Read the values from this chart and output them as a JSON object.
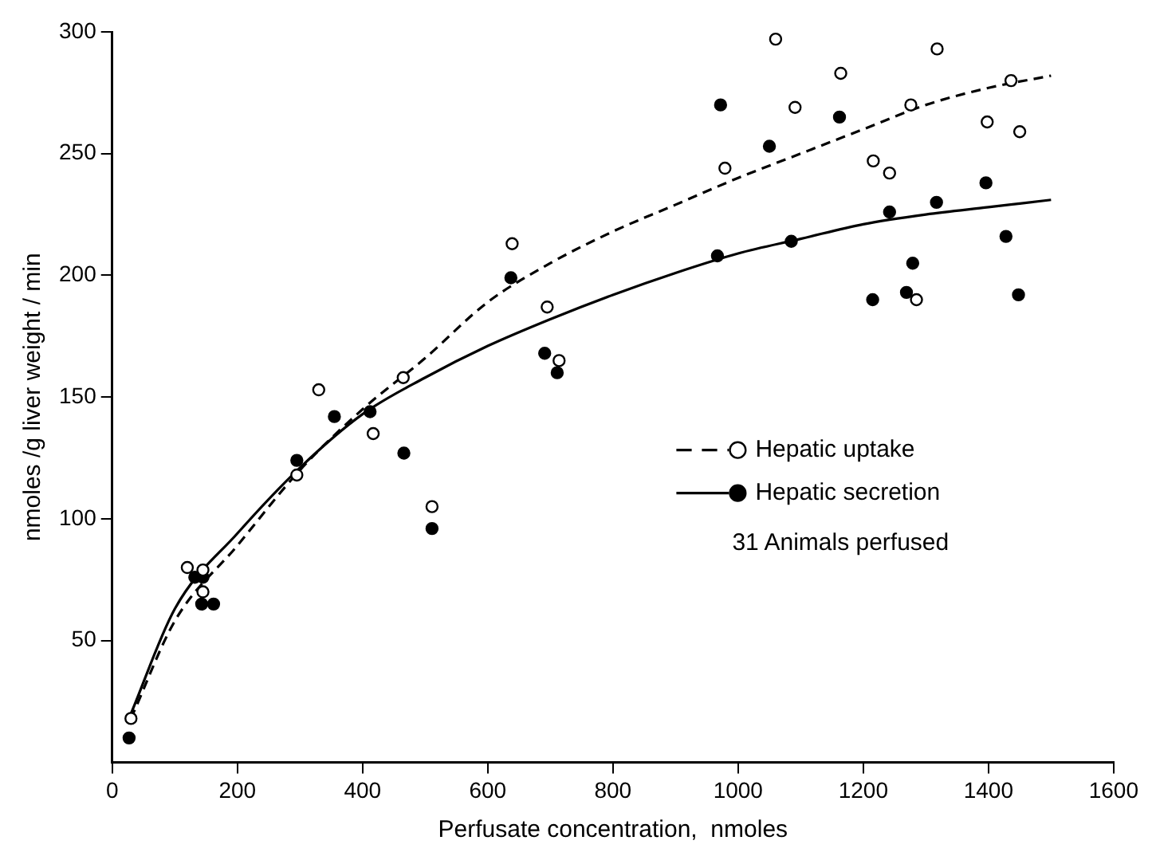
{
  "chart_data": {
    "type": "scatter",
    "xlabel": "Perfusate concentration,  nmoles",
    "ylabel": "nmoles /g liver weight / min",
    "xlim": [
      0,
      1600
    ],
    "xticks": [
      0,
      200,
      400,
      600,
      800,
      1000,
      1200,
      1400,
      1600
    ],
    "ylim": [
      0,
      300
    ],
    "yticks": [
      50,
      100,
      150,
      200,
      250,
      300
    ],
    "grid": false,
    "legend": "bottom right",
    "marker": "circle",
    "annotations": [
      "31 Animals perfused"
    ],
    "series": [
      {
        "name": "Hepatic uptake",
        "type": "scatter",
        "color": "#000000",
        "x": [
          30,
          120,
          145,
          145,
          295,
          330,
          417,
          465,
          511,
          639,
          695,
          714,
          979,
          1060,
          1091,
          1164,
          1216,
          1242,
          1276,
          1285,
          1318,
          1398,
          1436,
          1450
        ],
        "values": [
          18,
          80,
          79,
          70,
          118,
          153,
          135,
          158,
          105,
          213,
          187,
          165,
          244,
          297,
          269,
          283,
          247,
          242,
          270,
          190,
          293,
          263,
          280,
          259
        ]
      },
      {
        "name": "Hepatic secretion",
        "type": "scatter",
        "color": "#000000",
        "x": [
          27,
          132,
          145,
          143,
          162,
          295,
          355,
          412,
          466,
          511,
          637,
          691,
          711,
          967,
          972,
          1050,
          1085,
          1162,
          1215,
          1242,
          1269,
          1279,
          1317,
          1396,
          1428,
          1448
        ],
        "values": [
          10,
          76,
          76,
          65,
          65,
          124,
          142,
          144,
          127,
          96,
          199,
          168,
          160,
          208,
          270,
          253,
          214,
          265,
          190,
          226,
          193,
          205,
          230,
          238,
          216,
          192
        ]
      },
      {
        "type": "line",
        "marker": "none",
        "line_style": "dashed",
        "color": "#000000",
        "x": [
          30,
          100,
          200,
          300,
          400,
          500,
          600,
          700,
          800,
          900,
          1000,
          1100,
          1200,
          1300,
          1400,
          1500
        ],
        "values": [
          18,
          58,
          89,
          120,
          145,
          166,
          189,
          205,
          218,
          229,
          240,
          250,
          260,
          270,
          277,
          282
        ]
      },
      {
        "type": "line",
        "marker": "none",
        "line_style": "solid",
        "color": "#000000",
        "x": [
          30,
          100,
          200,
          300,
          400,
          500,
          600,
          700,
          800,
          900,
          1000,
          1100,
          1200,
          1300,
          1400,
          1500
        ],
        "values": [
          20,
          63,
          94,
          121,
          143,
          158,
          171,
          182,
          192,
          201,
          209,
          215,
          221,
          225,
          228,
          231
        ]
      }
    ]
  }
}
